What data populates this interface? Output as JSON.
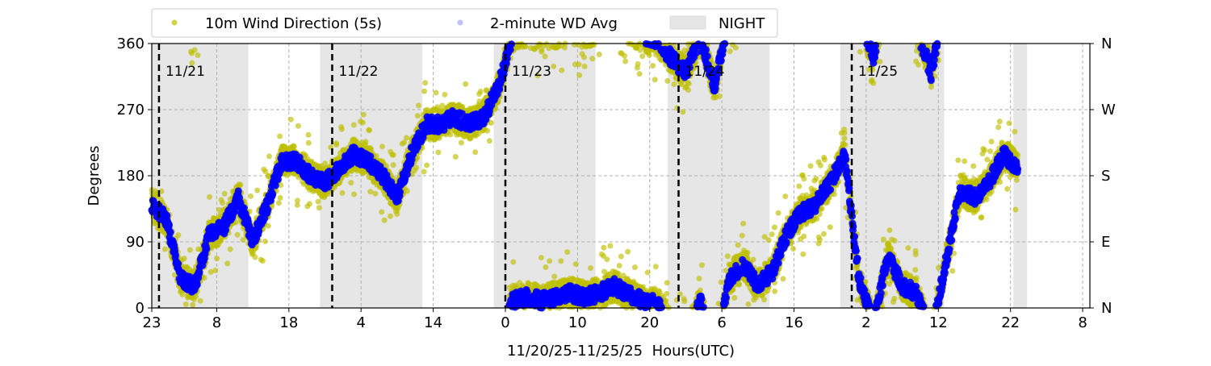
{
  "chart_data": {
    "type": "scatter",
    "xlabel": "11/20/25-11/25/25  Hours(UTC)",
    "ylabel": "Degrees",
    "x_unit": "hours since 11/20 23:00 UTC",
    "xlim": [
      0,
      130
    ],
    "ylim": [
      0,
      360
    ],
    "grid": true,
    "legend_placement": "top-left, above plot",
    "x_ticks": [
      {
        "hour": 0,
        "label": "23"
      },
      {
        "hour": 9,
        "label": "8"
      },
      {
        "hour": 19,
        "label": "18"
      },
      {
        "hour": 29,
        "label": "4"
      },
      {
        "hour": 39,
        "label": "14"
      },
      {
        "hour": 49,
        "label": "0"
      },
      {
        "hour": 59,
        "label": "10"
      },
      {
        "hour": 69,
        "label": "20"
      },
      {
        "hour": 79,
        "label": "6"
      },
      {
        "hour": 89,
        "label": "16"
      },
      {
        "hour": 99,
        "label": "2"
      },
      {
        "hour": 109,
        "label": "12"
      },
      {
        "hour": 119,
        "label": "22"
      },
      {
        "hour": 129,
        "label": "8"
      }
    ],
    "y_ticks": [
      {
        "value": 0,
        "label": "0"
      },
      {
        "value": 90,
        "label": "90"
      },
      {
        "value": 180,
        "label": "180"
      },
      {
        "value": 270,
        "label": "270"
      },
      {
        "value": 360,
        "label": "360"
      }
    ],
    "y2_ticks": [
      {
        "value": 0,
        "label": "N"
      },
      {
        "value": 90,
        "label": "E"
      },
      {
        "value": 180,
        "label": "S"
      },
      {
        "value": 270,
        "label": "W"
      },
      {
        "value": 360,
        "label": "N"
      }
    ],
    "day_markers": [
      {
        "hour": 1,
        "label": "11/21"
      },
      {
        "hour": 25,
        "label": "11/22"
      },
      {
        "hour": 49,
        "label": "11/23"
      },
      {
        "hour": 73,
        "label": "11/24"
      },
      {
        "hour": 97,
        "label": "11/25"
      }
    ],
    "night_periods": [
      [
        0,
        13.4
      ],
      [
        23.3,
        37.5
      ],
      [
        47.4,
        61.5
      ],
      [
        71.5,
        85.6
      ],
      [
        95.4,
        109.8
      ],
      [
        119.4,
        121.3
      ]
    ],
    "legend": {
      "wd5s": "10m Wind Direction (5s)",
      "wd2min": "2-minute WD Avg",
      "night": "NIGHT"
    },
    "colors": {
      "wd5s": "#bfbf00",
      "wd2min": "#0000ff",
      "night": "#e6e6e6"
    },
    "series": [
      {
        "name": "2-minute WD Avg",
        "sample_interval_hours": 2,
        "start_hour": 0,
        "values": [
          140,
          120,
          40,
          30,
          100,
          110,
          150,
          90,
          140,
          200,
          200,
          180,
          170,
          190,
          210,
          200,
          180,
          150,
          210,
          250,
          250,
          260,
          250,
          260,
          300,
          10,
          15,
          10,
          15,
          20,
          15,
          20,
          30,
          20,
          10,
          5,
          340,
          320,
          10,
          300,
          40,
          60,
          30,
          50,
          100,
          130,
          140,
          170,
          210,
          40,
          340,
          70,
          30,
          20,
          320,
          60,
          160,
          150,
          170,
          210,
          190
        ]
      },
      {
        "name": "10m Wind Direction (5s)",
        "note": "scatter around 2-minute average",
        "spread_degrees": 30
      }
    ]
  }
}
